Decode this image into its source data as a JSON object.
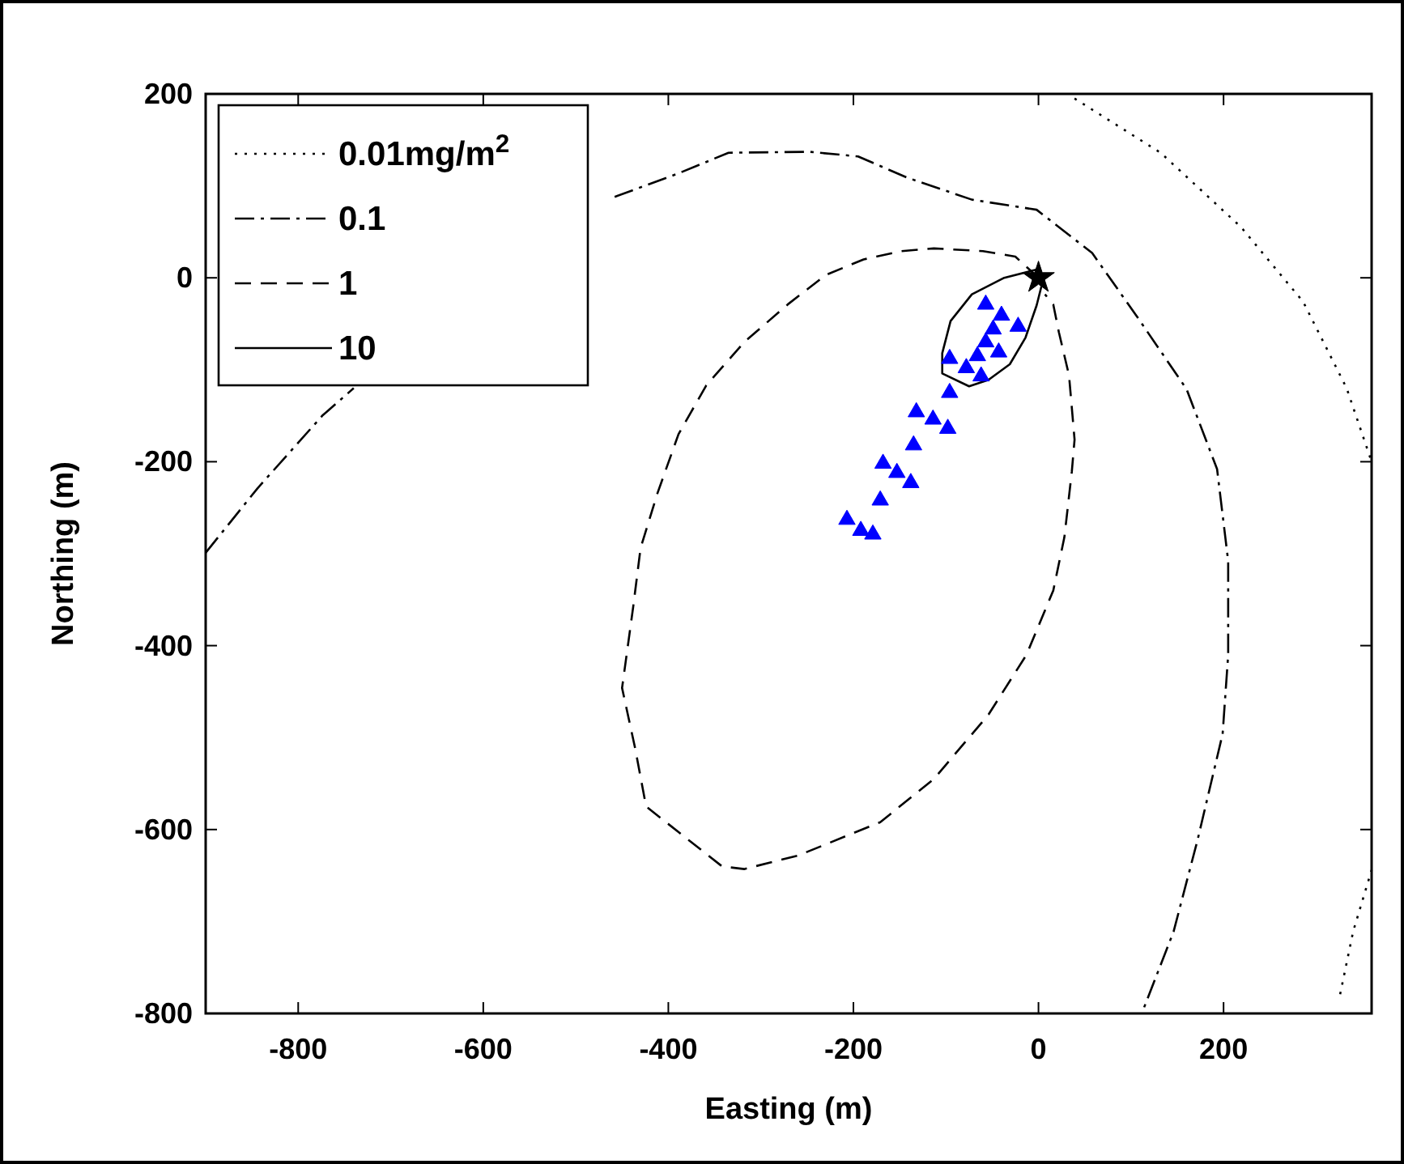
{
  "chart_data": {
    "type": "line",
    "xlabel": "Easting (m)",
    "ylabel": "Northing (m)",
    "xlim": [
      -900,
      360
    ],
    "ylim": [
      -800,
      200
    ],
    "xticks": [
      -800,
      -600,
      -400,
      -200,
      0,
      200
    ],
    "yticks": [
      -800,
      -600,
      -400,
      -200,
      0,
      200
    ],
    "grid": false,
    "legend": "top left",
    "series": [
      {
        "name": "0.01mg/m$^{2}$",
        "color": "#000000",
        "line_style": "dotted",
        "x": [
          39,
          132,
          219,
          286,
          333,
          360,
          null,
          326,
          340,
          360
        ],
        "values": [
          195,
          136,
          55,
          -26,
          -120,
          -200,
          null,
          -779,
          -711,
          -644
        ]
      },
      {
        "name": "0.1",
        "color": "#000000",
        "line_style": "dashdot",
        "x": [
          -900,
          -844,
          -774,
          -740,
          null,
          -458,
          -388,
          -335,
          -247,
          -195,
          -142,
          -72,
          -2,
          58,
          105,
          160,
          193,
          205,
          205,
          199,
          172,
          146,
          112
        ],
        "values": [
          -299,
          -229,
          -150,
          -120,
          null,
          88,
          114,
          136,
          137,
          132,
          109,
          85,
          74,
          27,
          -40,
          -121,
          -208,
          -308,
          -410,
          -496,
          -611,
          -711,
          -799
        ]
      },
      {
        "name": "1",
        "color": "#000000",
        "line_style": "dashed",
        "x": [
          0,
          -25,
          -60,
          -113,
          -148,
          -189,
          -230,
          -271,
          -318,
          -359,
          -389,
          -412,
          -430,
          -438,
          -450,
          -436,
          -424,
          -342,
          -318,
          -259,
          -171,
          -113,
          -54,
          -13,
          16,
          28,
          36,
          39,
          33,
          22,
          16,
          7
        ],
        "values": [
          0,
          23,
          29,
          32,
          29,
          20,
          3,
          -29,
          -70,
          -117,
          -170,
          -235,
          -294,
          -358,
          -446,
          -511,
          -575,
          -640,
          -643,
          -628,
          -592,
          -545,
          -475,
          -410,
          -340,
          -282,
          -211,
          -176,
          -106,
          -59,
          -29,
          -18
        ]
      },
      {
        "name": "10",
        "color": "#000000",
        "line_style": "solid",
        "x": [
          -2,
          -37,
          -72,
          -95,
          -104,
          -104,
          -75,
          -54,
          -31,
          -14,
          -2,
          4
        ],
        "values": [
          9,
          0,
          -18,
          -47,
          -82,
          -104,
          -118,
          -111,
          -94,
          -65,
          -30,
          -6
        ]
      },
      {
        "type": "scatter",
        "marker": "triangle",
        "color": "#0000ff",
        "x": [
          -57,
          -40,
          -49,
          -22,
          -57,
          -43,
          -66,
          -96,
          -78,
          -62,
          -96,
          -132,
          -114,
          -98,
          -135,
          -168,
          -153,
          -138,
          -171,
          -207,
          -192,
          -179
        ],
        "values": [
          -29,
          -41,
          -56,
          -53,
          -70,
          -81,
          -85,
          -88,
          -98,
          -107,
          -125,
          -146,
          -154,
          -164,
          -182,
          -202,
          -212,
          -223,
          -242,
          -263,
          -275,
          -279
        ]
      },
      {
        "type": "scatter",
        "marker": "star",
        "color": "#000000",
        "x": [
          0
        ],
        "values": [
          0
        ]
      }
    ]
  }
}
